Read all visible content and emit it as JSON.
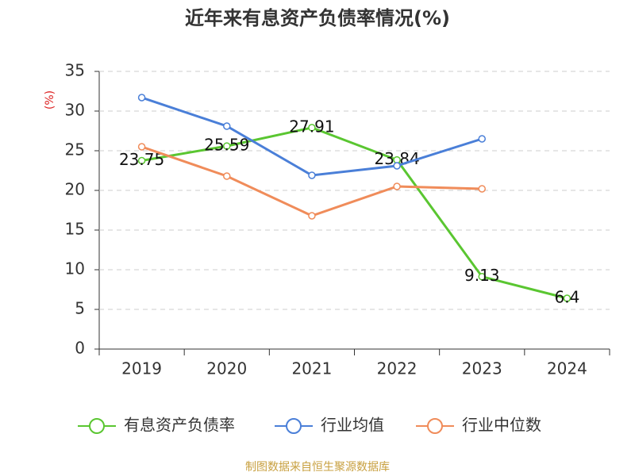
{
  "chart_data": {
    "type": "line",
    "title": "近年来有息资产负债率情况(%)",
    "y_label": "(%)",
    "categories": [
      "2019",
      "2020",
      "2021",
      "2022",
      "2023",
      "2024"
    ],
    "series": [
      {
        "name": "有息资产负债率",
        "color": "#5ac631",
        "values": [
          23.75,
          25.59,
          27.91,
          23.84,
          9.13,
          6.4
        ],
        "show_labels": true
      },
      {
        "name": "行业均值",
        "color": "#4a7fd8",
        "values": [
          31.7,
          28.1,
          21.9,
          23.1,
          26.5,
          null
        ],
        "show_labels": false
      },
      {
        "name": "行业中位数",
        "color": "#f08c5a",
        "values": [
          25.5,
          21.8,
          16.8,
          20.5,
          20.2,
          null
        ],
        "show_labels": false
      }
    ],
    "ylim": [
      0,
      35
    ],
    "yticks": [
      0,
      5,
      10,
      15,
      20,
      25,
      30,
      35
    ],
    "grid": true,
    "source": "制图数据来自恒生聚源数据库"
  }
}
